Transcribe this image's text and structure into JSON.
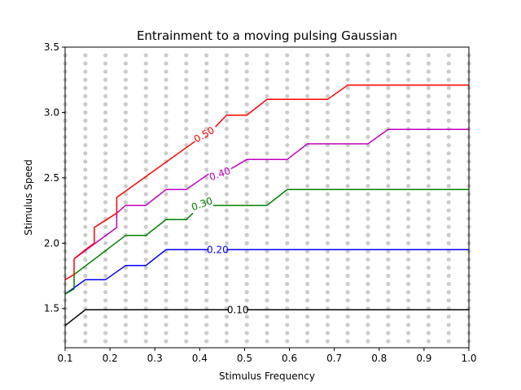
{
  "chart_data": {
    "type": "line",
    "title": "Entrainment to a moving pulsing Gaussian",
    "xlabel": "Stimulus Frequency",
    "ylabel": "Stimulus Speed",
    "xlim": [
      0.1,
      1.0
    ],
    "ylim": [
      1.2,
      3.5
    ],
    "xticks": [
      0.1,
      0.2,
      0.3,
      0.4,
      0.5,
      0.6,
      0.7,
      0.8,
      0.9,
      1.0
    ],
    "xtick_labels": [
      "0.1",
      "0.2",
      "0.3",
      "0.4",
      "0.5",
      "0.6",
      "0.7",
      "0.8",
      "0.9",
      "1.0"
    ],
    "yticks": [
      1.5,
      2.0,
      2.5,
      3.0,
      3.5
    ],
    "ytick_labels": [
      "1.5",
      "2.0",
      "2.5",
      "3.0",
      "3.5"
    ],
    "grid": false,
    "sample_points": {
      "x_start": 0.1,
      "x_step": 0.045,
      "x_count": 21,
      "y_start": 1.25,
      "y_step": 0.0625,
      "y_count": 36,
      "color": "#cccccc"
    },
    "series": [
      {
        "name": "0.10",
        "color": "#000000",
        "label": {
          "text": "0.10",
          "x": 0.485,
          "y": 1.49,
          "angle": 0
        },
        "segments": [
          [
            [
              0.1,
              1.37
            ],
            [
              0.145,
              1.49
            ],
            [
              0.465,
              1.49
            ]
          ],
          [
            [
              0.505,
              1.49
            ],
            [
              1.0,
              1.49
            ]
          ]
        ]
      },
      {
        "name": "0.20",
        "color": "#0000ff",
        "label": {
          "text": "0.20",
          "x": 0.44,
          "y": 1.95,
          "angle": 0
        },
        "segments": [
          [
            [
              0.1,
              1.61
            ],
            [
              0.145,
              1.72
            ],
            [
              0.19,
              1.72
            ],
            [
              0.235,
              1.83
            ],
            [
              0.28,
              1.83
            ],
            [
              0.325,
              1.95
            ],
            [
              0.42,
              1.95
            ]
          ],
          [
            [
              0.46,
              1.95
            ],
            [
              1.0,
              1.95
            ]
          ]
        ]
      },
      {
        "name": "0.30",
        "color": "#008000",
        "label": {
          "text": "0.30",
          "x": 0.405,
          "y": 2.3,
          "angle": -20
        },
        "segments": [
          [
            [
              0.1,
              1.61
            ],
            [
              0.12,
              1.65
            ],
            [
              0.12,
              1.76
            ],
            [
              0.235,
              2.06
            ],
            [
              0.28,
              2.06
            ],
            [
              0.325,
              2.18
            ],
            [
              0.37,
              2.18
            ],
            [
              0.385,
              2.23
            ]
          ],
          [
            [
              0.43,
              2.29
            ],
            [
              0.55,
              2.29
            ],
            [
              0.595,
              2.41
            ],
            [
              1.0,
              2.41
            ]
          ]
        ]
      },
      {
        "name": "0.40",
        "color": "#bf00bf",
        "label": {
          "text": "0.40",
          "x": 0.445,
          "y": 2.53,
          "angle": -20
        },
        "segments": [
          [
            [
              0.12,
              1.88
            ],
            [
              0.215,
              2.12
            ],
            [
              0.215,
              2.23
            ],
            [
              0.235,
              2.29
            ],
            [
              0.28,
              2.29
            ],
            [
              0.325,
              2.41
            ],
            [
              0.37,
              2.41
            ],
            [
              0.42,
              2.53
            ]
          ],
          [
            [
              0.47,
              2.57
            ],
            [
              0.505,
              2.64
            ],
            [
              0.55,
              2.64
            ],
            [
              0.595,
              2.64
            ],
            [
              0.64,
              2.76
            ],
            [
              0.775,
              2.76
            ],
            [
              0.82,
              2.87
            ],
            [
              1.0,
              2.87
            ]
          ]
        ]
      },
      {
        "name": "0.50",
        "color": "#ff0000",
        "label": {
          "text": "0.50",
          "x": 0.41,
          "y": 2.83,
          "angle": -30
        },
        "segments": [
          [
            [
              0.1,
              1.72
            ],
            [
              0.12,
              1.76
            ],
            [
              0.12,
              1.88
            ],
            [
              0.145,
              1.95
            ],
            [
              0.165,
              2.0
            ],
            [
              0.165,
              2.12
            ],
            [
              0.215,
              2.23
            ],
            [
              0.215,
              2.35
            ],
            [
              0.39,
              2.78
            ]
          ],
          [
            [
              0.435,
              2.89
            ],
            [
              0.46,
              2.98
            ],
            [
              0.505,
              2.98
            ],
            [
              0.55,
              3.1
            ],
            [
              0.685,
              3.1
            ],
            [
              0.73,
              3.21
            ],
            [
              1.0,
              3.21
            ]
          ]
        ]
      }
    ]
  }
}
